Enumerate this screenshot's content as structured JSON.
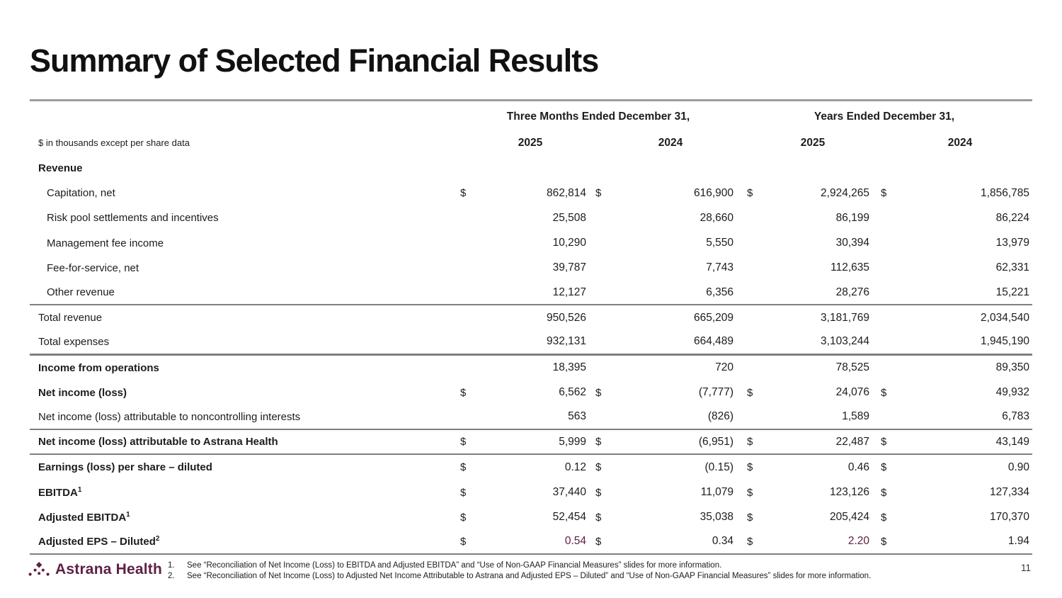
{
  "slide": {
    "title": "Summary of Selected Financial Results",
    "page_number": "11"
  },
  "colors": {
    "accent_maroon": "#5d2144",
    "rule_gray": "#7f7f7f",
    "text": "#1c1c1c"
  },
  "table": {
    "note": "$ in thousands except per share data",
    "currency_symbol": "$",
    "group_headers": [
      "Three Months Ended December 31,",
      "Years Ended December 31,"
    ],
    "year_headers": [
      "2025",
      "2024",
      "2025",
      "2024"
    ],
    "rows": [
      {
        "label": "Revenue",
        "style": "section",
        "dollar": false,
        "values": [
          "",
          "",
          "",
          ""
        ]
      },
      {
        "label": "Capitation, net",
        "style": "item",
        "dollar": true,
        "values": [
          "862,814",
          "616,900",
          "2,924,265",
          "1,856,785"
        ]
      },
      {
        "label": "Risk pool settlements and incentives",
        "style": "item",
        "dollar": false,
        "values": [
          "25,508",
          "28,660",
          "86,199",
          "86,224"
        ]
      },
      {
        "label": "Management fee income",
        "style": "item",
        "dollar": false,
        "values": [
          "10,290",
          "5,550",
          "30,394",
          "13,979"
        ]
      },
      {
        "label": "Fee-for-service, net",
        "style": "item",
        "dollar": false,
        "values": [
          "39,787",
          "7,743",
          "112,635",
          "62,331"
        ]
      },
      {
        "label": "Other revenue",
        "style": "item",
        "dollar": false,
        "values": [
          "12,127",
          "6,356",
          "28,276",
          "15,221"
        ],
        "rule_below": true
      },
      {
        "label": "Total revenue",
        "style": "plain",
        "dollar": false,
        "values": [
          "950,526",
          "665,209",
          "3,181,769",
          "2,034,540"
        ]
      },
      {
        "label": "Total expenses",
        "style": "plain",
        "dollar": false,
        "values": [
          "932,131",
          "664,489",
          "3,103,244",
          "1,945,190"
        ],
        "thick_rule": true
      },
      {
        "label": "Income from operations",
        "style": "bold",
        "dollar": false,
        "values": [
          "18,395",
          "720",
          "78,525",
          "89,350"
        ]
      },
      {
        "label": "Net income (loss)",
        "style": "bold",
        "dollar": true,
        "values": [
          "6,562",
          "(7,777)",
          "24,076",
          "49,932"
        ]
      },
      {
        "label": "Net income (loss) attributable to noncontrolling interests",
        "style": "plain",
        "dollar": false,
        "values": [
          "563",
          "(826)",
          "1,589",
          "6,783"
        ],
        "rule_below": true
      },
      {
        "label": "Net income (loss) attributable to Astrana Health",
        "style": "bold",
        "dollar": true,
        "values": [
          "5,999",
          "(6,951)",
          "22,487",
          "43,149"
        ],
        "rule_below": true
      },
      {
        "label": "Earnings (loss) per share – diluted",
        "style": "bold",
        "dollar": true,
        "values": [
          "0.12",
          "(0.15)",
          "0.46",
          "0.90"
        ]
      },
      {
        "label": "EBITDA",
        "sup": "1",
        "style": "bold",
        "dollar": true,
        "values": [
          "37,440",
          "11,079",
          "123,126",
          "127,334"
        ]
      },
      {
        "label": "Adjusted EBITDA",
        "sup": "1",
        "style": "bold",
        "dollar": true,
        "values": [
          "52,454",
          "35,038",
          "205,424",
          "170,370"
        ]
      },
      {
        "label": "Adjusted EPS – Diluted",
        "sup": "2",
        "style": "bold",
        "dollar": true,
        "values": [
          "0.54",
          "0.34",
          "2.20",
          "1.94"
        ],
        "rule_below": true,
        "accent_value_indexes": [
          0,
          2
        ]
      }
    ]
  },
  "footer": {
    "logo_text": "Astrana Health",
    "footnotes": [
      {
        "num": "1.",
        "text": "See “Reconciliation of Net Income (Loss) to EBITDA and Adjusted EBITDA” and “Use of Non-GAAP Financial Measures” slides for more information."
      },
      {
        "num": "2.",
        "text": "See “Reconciliation of Net Income (Loss) to Adjusted Net Income Attributable to Astrana and Adjusted EPS – Diluted” and “Use of Non-GAAP Financial Measures” slides for more information."
      }
    ]
  }
}
